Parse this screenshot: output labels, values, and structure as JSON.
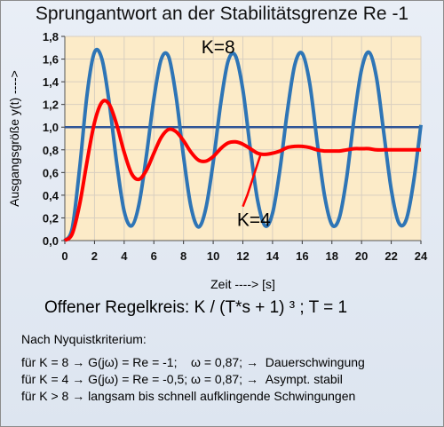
{
  "chart_data": {
    "type": "line",
    "title": "Sprungantwort an der Stabilitätsgrenze Re -1",
    "xlabel": "Zeit ----> [s]",
    "ylabel": "Ausgangsgröße y(t) ---->",
    "xlim": [
      0,
      24
    ],
    "ylim": [
      0,
      1.8
    ],
    "x_ticks": [
      "0",
      "2",
      "4",
      "6",
      "8",
      "10",
      "12",
      "14",
      "16",
      "18",
      "20",
      "22",
      "24"
    ],
    "y_ticks": [
      "0,0",
      "0,2",
      "0,4",
      "0,6",
      "0,8",
      "1,0",
      "1,2",
      "1,4",
      "1,6",
      "1,8"
    ],
    "grid": true,
    "reference_line": 1.0,
    "colors": {
      "k8": "#2e75b6",
      "k4": "#ff0000",
      "reference": "#2f5597",
      "plot_background": "#fcebc8"
    },
    "series": [
      {
        "name": "K=8",
        "x": [
          0,
          0.5,
          1.0,
          1.5,
          2.0,
          2.5,
          3.0,
          3.5,
          4.0,
          4.5,
          5.0,
          5.5,
          6.0,
          6.5,
          7.0,
          7.5,
          8.0,
          8.5,
          9.0,
          9.5,
          10.0,
          10.5,
          11.0,
          11.5,
          12.0,
          12.5,
          13.0,
          13.5,
          14.0,
          14.5,
          15.0,
          15.5,
          16.0,
          16.5,
          17.0,
          17.5,
          18.0,
          18.5,
          19.0,
          19.5,
          20.0,
          20.5,
          21.0,
          21.5,
          22.0,
          22.5,
          23.0,
          23.5,
          24.0
        ],
        "y": [
          0,
          0.11,
          0.64,
          1.29,
          1.66,
          1.6,
          1.21,
          0.68,
          0.26,
          0.13,
          0.32,
          0.75,
          1.25,
          1.6,
          1.62,
          1.27,
          0.74,
          0.3,
          0.12,
          0.28,
          0.69,
          1.2,
          1.58,
          1.63,
          1.33,
          0.81,
          0.35,
          0.13,
          0.24,
          0.63,
          1.14,
          1.55,
          1.65,
          1.39,
          0.88,
          0.4,
          0.14,
          0.2,
          0.56,
          1.08,
          1.51,
          1.66,
          1.44,
          0.95,
          0.45,
          0.16,
          0.18,
          0.51,
          1.02
        ]
      },
      {
        "name": "K=4",
        "x": [
          0,
          0.5,
          1.0,
          1.5,
          2.0,
          2.5,
          3.0,
          3.5,
          4.0,
          4.5,
          5.0,
          5.5,
          6.0,
          6.5,
          7.0,
          7.5,
          8.0,
          8.5,
          9.0,
          9.5,
          10.0,
          10.5,
          11.0,
          11.5,
          12.0,
          12.5,
          13.0,
          13.5,
          14.0,
          14.5,
          15.0,
          15.5,
          16.0,
          16.5,
          17.0,
          17.5,
          18.0,
          18.5,
          19.0,
          19.5,
          20.0,
          20.5,
          21.0,
          21.5,
          22.0,
          22.5,
          23.0,
          23.5,
          24.0
        ],
        "y": [
          0,
          0.06,
          0.32,
          0.7,
          1.04,
          1.22,
          1.2,
          1.02,
          0.78,
          0.59,
          0.54,
          0.62,
          0.77,
          0.91,
          0.98,
          0.96,
          0.88,
          0.78,
          0.71,
          0.7,
          0.74,
          0.81,
          0.86,
          0.87,
          0.85,
          0.81,
          0.77,
          0.76,
          0.77,
          0.79,
          0.82,
          0.83,
          0.83,
          0.82,
          0.8,
          0.79,
          0.79,
          0.79,
          0.8,
          0.81,
          0.81,
          0.81,
          0.8,
          0.8,
          0.8,
          0.8,
          0.8,
          0.8,
          0.8
        ]
      }
    ],
    "annotations": [
      "K=8",
      "K=4"
    ]
  },
  "caption": "Offener Regelkreis: K / (T*s + 1) ³ ;  T = 1",
  "notes": [
    "Nach Nyquistkriterium:",
    "für K = 8 → G(jω) = Re = -1;    ω = 0,87; →  Dauerschwingung",
    "für K = 4 → G(jω) = Re = -0,5; ω = 0,87; →  Asympt. stabil",
    "für K > 8 → langsam bis schnell aufklingende Schwingungen"
  ]
}
